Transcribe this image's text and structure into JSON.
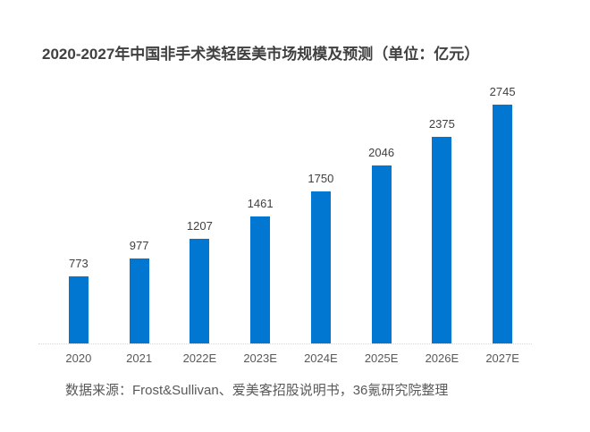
{
  "chart_data": {
    "type": "bar",
    "title": "2020-2027年中国非手术类轻医美市场规模及预测（单位：亿元）",
    "categories": [
      "2020",
      "2021",
      "2022E",
      "2023E",
      "2024E",
      "2025E",
      "2026E",
      "2027E"
    ],
    "values": [
      773,
      977,
      1207,
      1461,
      1750,
      2046,
      2375,
      2745
    ],
    "xlabel": "",
    "ylabel": "",
    "ylim": [
      0,
      2900
    ],
    "grid": false,
    "legend_position": "none",
    "value_labels_shown": true,
    "bar_color": "#0277d2"
  },
  "colors": {
    "title_text": "#404040",
    "value_label_text": "#404040",
    "axis_label_text": "#595959",
    "source_text": "#595959",
    "axis_line": "#d9d9d9",
    "background": "#ffffff"
  },
  "source": {
    "text": "数据来源：Frost&Sullivan、爱美客招股说明书，36氪研究院整理"
  }
}
